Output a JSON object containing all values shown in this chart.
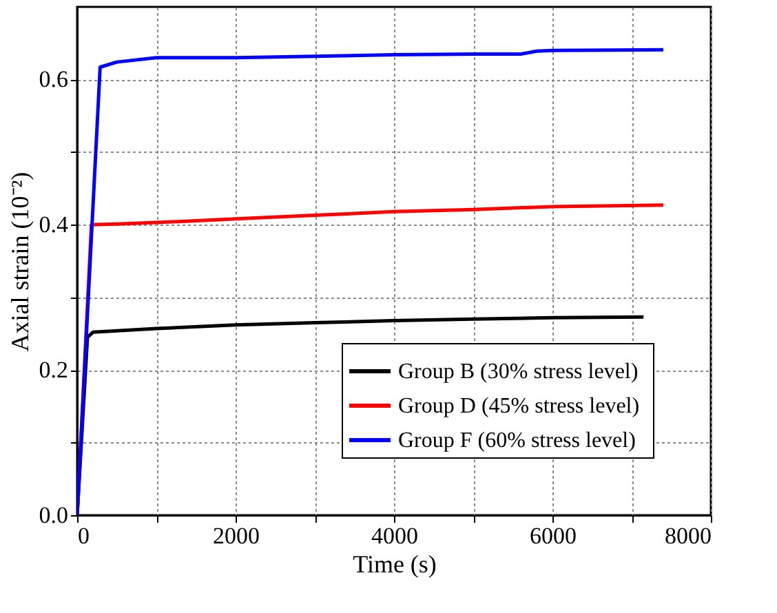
{
  "chart_data": {
    "type": "line",
    "xlabel": "Time (s)",
    "ylabel": "Axial strain (10⁻²)",
    "xlim": [
      0,
      8000
    ],
    "xticks": [
      0,
      {
        "value": 1000,
        "label": null
      },
      2000,
      {
        "value": 3000,
        "label": null
      },
      4000,
      {
        "value": 5000,
        "label": null
      },
      6000,
      {
        "value": 7000,
        "label": null
      },
      8000
    ],
    "ylim": [
      0,
      0.7
    ],
    "yticks": [
      "0.0",
      {
        "value": 0.1,
        "label": null
      },
      0.2,
      {
        "value": 0.3,
        "label": null
      },
      0.4,
      {
        "value": 0.5,
        "label": null
      },
      0.6
    ],
    "grid": true,
    "legend": "bottom right",
    "line_style": "solid",
    "marker": "none",
    "series": [
      {
        "name": "Group B  (30% stress level)",
        "color": "#000000",
        "x": [
          0,
          130,
          200,
          1000,
          2000,
          3000,
          4000,
          5000,
          6000,
          7150
        ],
        "values": [
          0,
          0.245,
          0.252,
          0.257,
          0.262,
          0.265,
          0.268,
          0.27,
          0.272,
          0.273
        ]
      },
      {
        "name": "Group D  (45% stress level)",
        "color": "#ff0000",
        "x": [
          0,
          180,
          500,
          1000,
          2000,
          3000,
          4000,
          5000,
          6000,
          7400
        ],
        "values": [
          0,
          0.4,
          0.401,
          0.403,
          0.408,
          0.413,
          0.418,
          0.421,
          0.425,
          0.427
        ]
      },
      {
        "name": "Group F   (60% stress level)",
        "color": "#0000ff",
        "x": [
          0,
          290,
          500,
          1000,
          2000,
          3000,
          4000,
          5000,
          5600,
          5800,
          6000,
          7400
        ],
        "values": [
          0,
          0.617,
          0.624,
          0.63,
          0.63,
          0.632,
          0.634,
          0.635,
          0.635,
          0.639,
          0.64,
          0.641
        ]
      }
    ]
  }
}
